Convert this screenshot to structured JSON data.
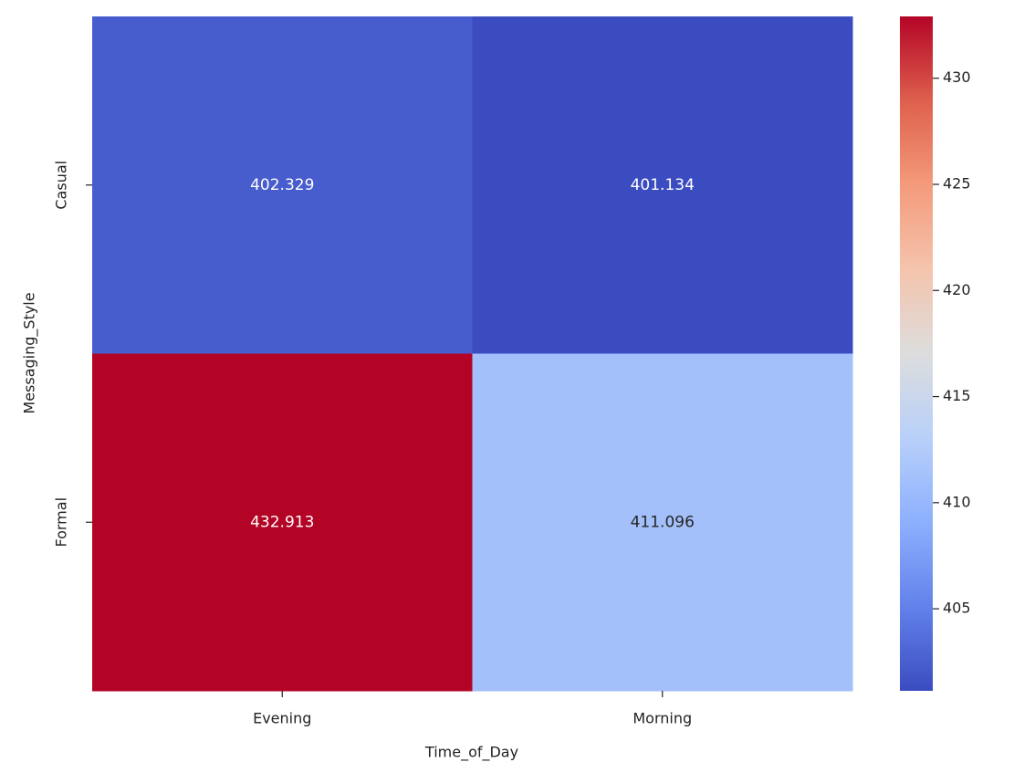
{
  "chart_data": {
    "type": "heatmap",
    "x": [
      "Evening",
      "Morning"
    ],
    "y": [
      "Casual",
      "Formal"
    ],
    "values": [
      [
        402.329,
        401.134
      ],
      [
        432.913,
        411.096
      ]
    ],
    "xlabel": "Time_of_Day",
    "ylabel": "Messaging_Style",
    "colormap": "coolwarm",
    "zlim": [
      401.134,
      432.913
    ],
    "colorbar_ticks": [
      405,
      410,
      415,
      420,
      425,
      430
    ]
  }
}
